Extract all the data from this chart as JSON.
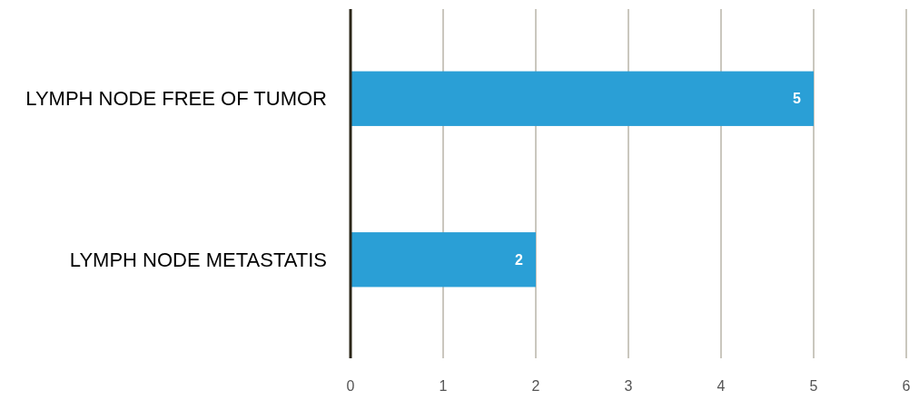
{
  "chart_data": {
    "type": "bar",
    "orientation": "horizontal",
    "categories": [
      "LYMPH NODE FREE OF TUMOR",
      "LYMPH NODE METASTATIS"
    ],
    "values": [
      5,
      2
    ],
    "color": "#2a9fd6",
    "xlim": [
      0,
      6
    ],
    "xticks": [
      0,
      1,
      2,
      3,
      4,
      5,
      6
    ],
    "grid": "x",
    "data_labels": true
  }
}
